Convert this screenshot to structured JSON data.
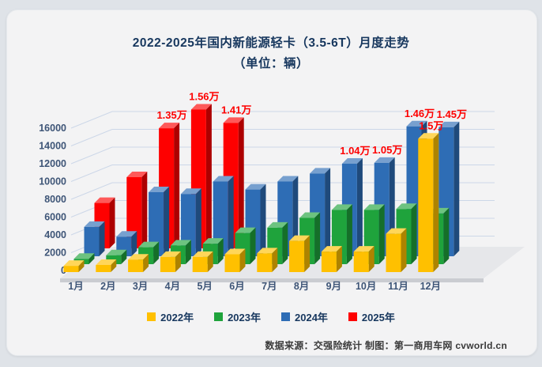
{
  "title": {
    "line1": "2022-2025年国内新能源轻卡（3.5-6T）月度走势",
    "line2": "（单位：辆）"
  },
  "footer": {
    "text": "数据来源：交强险统计 制图：第一商用车网 cvworld.cn"
  },
  "chart_data": {
    "type": "bar",
    "variant": "3d-grouped-column",
    "title": "2022-2025年国内新能源轻卡（3.5-6T）月度走势（单位：辆）",
    "categories": [
      "1月",
      "2月",
      "3月",
      "4月",
      "5月",
      "6月",
      "7月",
      "8月",
      "9月",
      "10月",
      "11月",
      "12月"
    ],
    "series": [
      {
        "name": "2022年",
        "color": "#FFC000",
        "values": [
          700,
          800,
          1400,
          1700,
          1700,
          2000,
          2100,
          3500,
          2300,
          2300,
          4300,
          15000
        ],
        "labels": {
          "11": "1.5万"
        }
      },
      {
        "name": "2023年",
        "color": "#1FA33C",
        "values": [
          600,
          1000,
          1900,
          2100,
          2300,
          3500,
          4100,
          5200,
          6100,
          6100,
          6200,
          5700
        ],
        "labels": {}
      },
      {
        "name": "2024年",
        "color": "#2E6DB5",
        "values": [
          3300,
          2200,
          7200,
          7000,
          8400,
          7500,
          8400,
          9300,
          10400,
          10500,
          14600,
          14500
        ],
        "labels": {
          "8": "1.04万",
          "9": "1.05万",
          "10": "1.46万",
          "11": "1.45万"
        }
      },
      {
        "name": "2025年",
        "color": "#FE0000",
        "values": [
          5100,
          8000,
          13500,
          15600,
          14100,
          null,
          null,
          null,
          null,
          null,
          null,
          null
        ],
        "labels": {
          "2": "1.35万",
          "3": "1.56万",
          "4": "1.41万"
        }
      }
    ],
    "ylim": [
      0,
      16000
    ],
    "yticks": [
      0,
      2000,
      4000,
      6000,
      8000,
      10000,
      12000,
      14000,
      16000
    ],
    "grid": true,
    "legend_position": "bottom",
    "value_label_color": "#FE0000",
    "axis_text_color": "#3e5577",
    "gridline_color": "#ccd7e8"
  }
}
